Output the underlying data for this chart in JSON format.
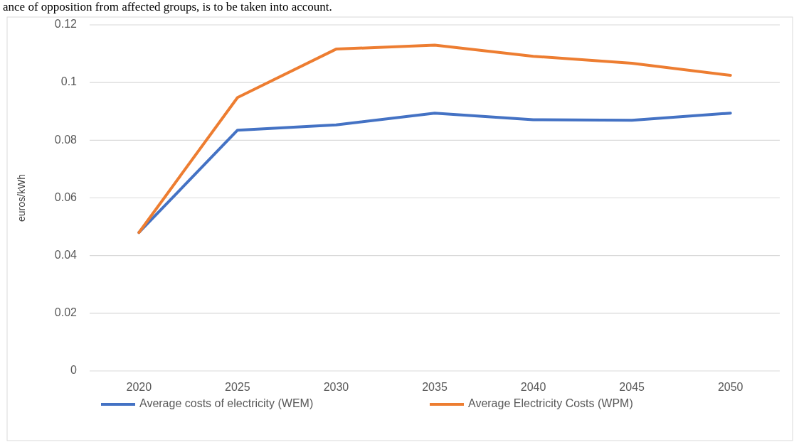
{
  "chart_data": {
    "type": "line",
    "ylabel": "euros/kWh",
    "annotations": [
      "ance of opposition from affected groups, is to be taken into account."
    ],
    "categories": [
      "2020",
      "2025",
      "2030",
      "2035",
      "2040",
      "2045",
      "2050"
    ],
    "series": [
      {
        "name": "Average costs of electricity (WEM)",
        "color": "#4472c4",
        "values": [
          0.048,
          0.0835,
          0.0853,
          0.0894,
          0.0871,
          0.0869,
          0.0894
        ]
      },
      {
        "name": "Average Electricity Costs (WPM)",
        "color": "#ed7d31",
        "values": [
          0.048,
          0.0948,
          0.1116,
          0.113,
          0.1091,
          0.1067,
          0.1025
        ]
      }
    ],
    "ylim": [
      0,
      0.12
    ],
    "yticks": [
      0,
      0.02,
      0.04,
      0.06,
      0.08,
      0.1,
      0.12
    ],
    "grid": "y",
    "legend": "bottom",
    "marker": "none",
    "line_style": "solid"
  }
}
